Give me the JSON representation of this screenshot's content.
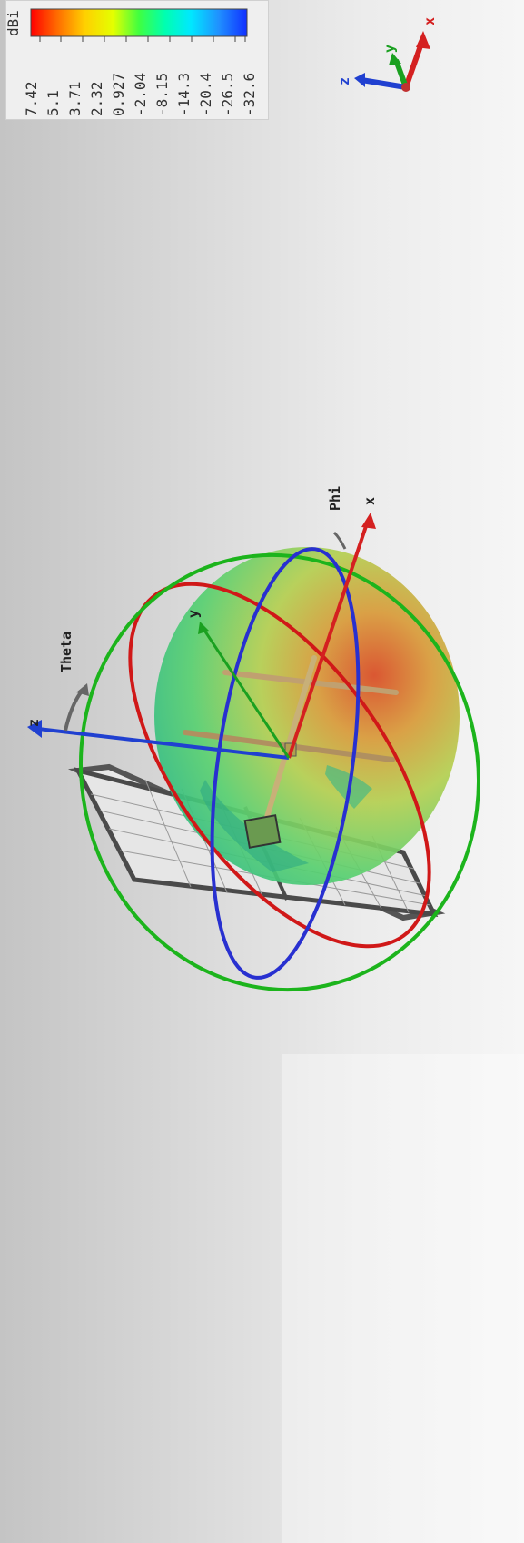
{
  "legend": {
    "unit": "dBi",
    "values": [
      "7.42",
      "5.1",
      "3.71",
      "2.32",
      "0.927",
      "-2.04",
      "-8.15",
      "-14.3",
      "-20.4",
      "-26.5",
      "-32.6"
    ]
  },
  "triad": {
    "x": "x",
    "y": "y",
    "z": "z"
  },
  "scene_axes": {
    "x": "x",
    "y": "y",
    "z": "z"
  },
  "angles": {
    "theta": "Theta",
    "phi": "Phi"
  },
  "colors": {
    "x_axis": "#d42020",
    "y_axis": "#1aa020",
    "z_axis": "#2040d0",
    "ring_red": "#d01818",
    "ring_green": "#1cb41c",
    "ring_blue": "#2830d0"
  }
}
